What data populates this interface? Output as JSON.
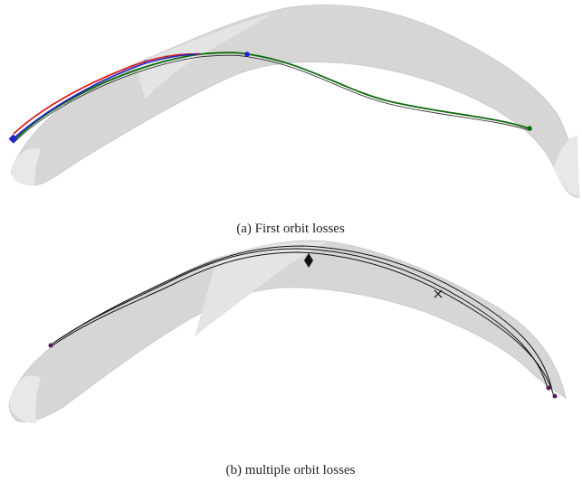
{
  "figure": {
    "subfigures": [
      {
        "caption": "(a) First orbit losses"
      },
      {
        "caption": "(b) multiple orbit losses"
      }
    ]
  }
}
